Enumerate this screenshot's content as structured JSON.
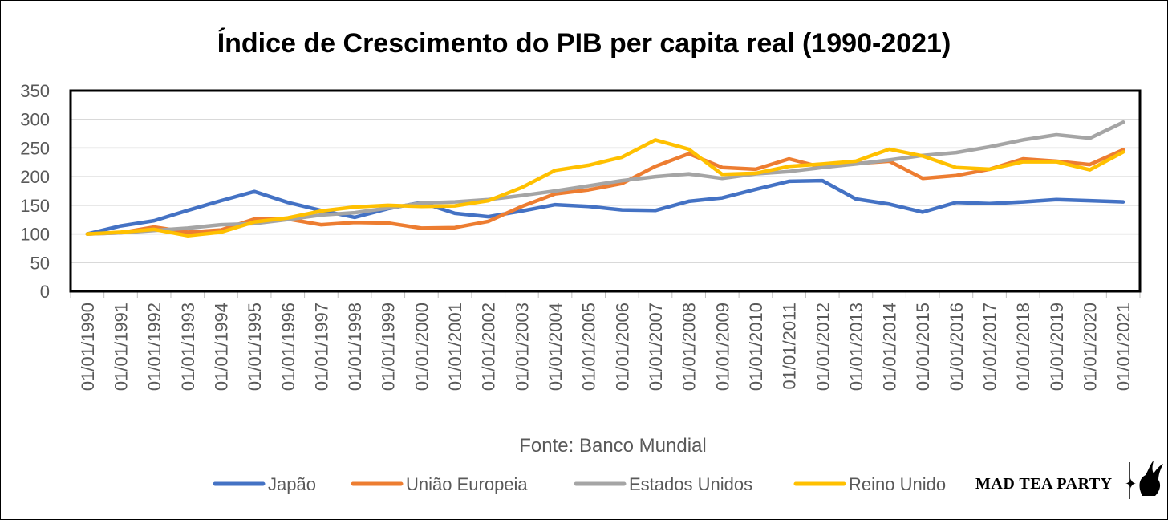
{
  "chart_data": {
    "type": "line",
    "title": "Índice de Crescimento do PIB per capita real (1990-2021)",
    "source": "Fonte: Banco Mundial",
    "xlabel": "",
    "ylabel": "",
    "ylim": [
      0,
      350
    ],
    "yticks": [
      0,
      50,
      100,
      150,
      200,
      250,
      300,
      350
    ],
    "grid": true,
    "legend_position": "bottom",
    "categories": [
      "01/01/1990",
      "01/01/1991",
      "01/01/1992",
      "01/01/1993",
      "01/01/1994",
      "01/01/1995",
      "01/01/1996",
      "01/01/1997",
      "01/01/1998",
      "01/01/1999",
      "01/01/2000",
      "01/01/2001",
      "01/01/2002",
      "01/01/2003",
      "01/01/2004",
      "01/01/2005",
      "01/01/2006",
      "01/01/2007",
      "01/01/2008",
      "01/01/2009",
      "01/01/2010",
      "01/01/2011",
      "01/01/2012",
      "01/01/2013",
      "01/01/2014",
      "01/01/2015",
      "01/01/2016",
      "01/01/2017",
      "01/01/2018",
      "01/01/2019",
      "01/01/2020",
      "01/01/2021"
    ],
    "series": [
      {
        "name": "Japão",
        "color": "#4472C4",
        "values": [
          100,
          114,
          123,
          141,
          158,
          174,
          155,
          141,
          129,
          144,
          155,
          136,
          130,
          140,
          151,
          148,
          142,
          141,
          157,
          163,
          178,
          192,
          193,
          161,
          152,
          138,
          155,
          153,
          156,
          160,
          158,
          156
        ]
      },
      {
        "name": "União Europeia",
        "color": "#ED7D31",
        "values": [
          100,
          102,
          112,
          103,
          107,
          126,
          126,
          116,
          120,
          119,
          110,
          111,
          122,
          148,
          170,
          177,
          188,
          218,
          240,
          216,
          213,
          231,
          216,
          223,
          227,
          197,
          202,
          213,
          231,
          227,
          221,
          247
        ]
      },
      {
        "name": "Estados Unidos",
        "color": "#A5A5A5",
        "values": [
          100,
          102,
          106,
          110,
          116,
          118,
          125,
          133,
          137,
          145,
          154,
          156,
          160,
          167,
          175,
          184,
          193,
          200,
          205,
          197,
          205,
          209,
          216,
          222,
          229,
          237,
          242,
          252,
          264,
          273,
          267,
          295
        ]
      },
      {
        "name": "Reino Unido",
        "color": "#FFC000",
        "values": [
          100,
          103,
          108,
          97,
          103,
          121,
          128,
          140,
          147,
          150,
          148,
          149,
          158,
          181,
          211,
          220,
          234,
          264,
          248,
          204,
          206,
          218,
          222,
          227,
          248,
          236,
          216,
          213,
          226,
          226,
          212,
          243
        ]
      }
    ]
  },
  "logo": {
    "text": "MAD TEA PARTY",
    "star": "✦",
    "icon": "rabbit-icon"
  }
}
